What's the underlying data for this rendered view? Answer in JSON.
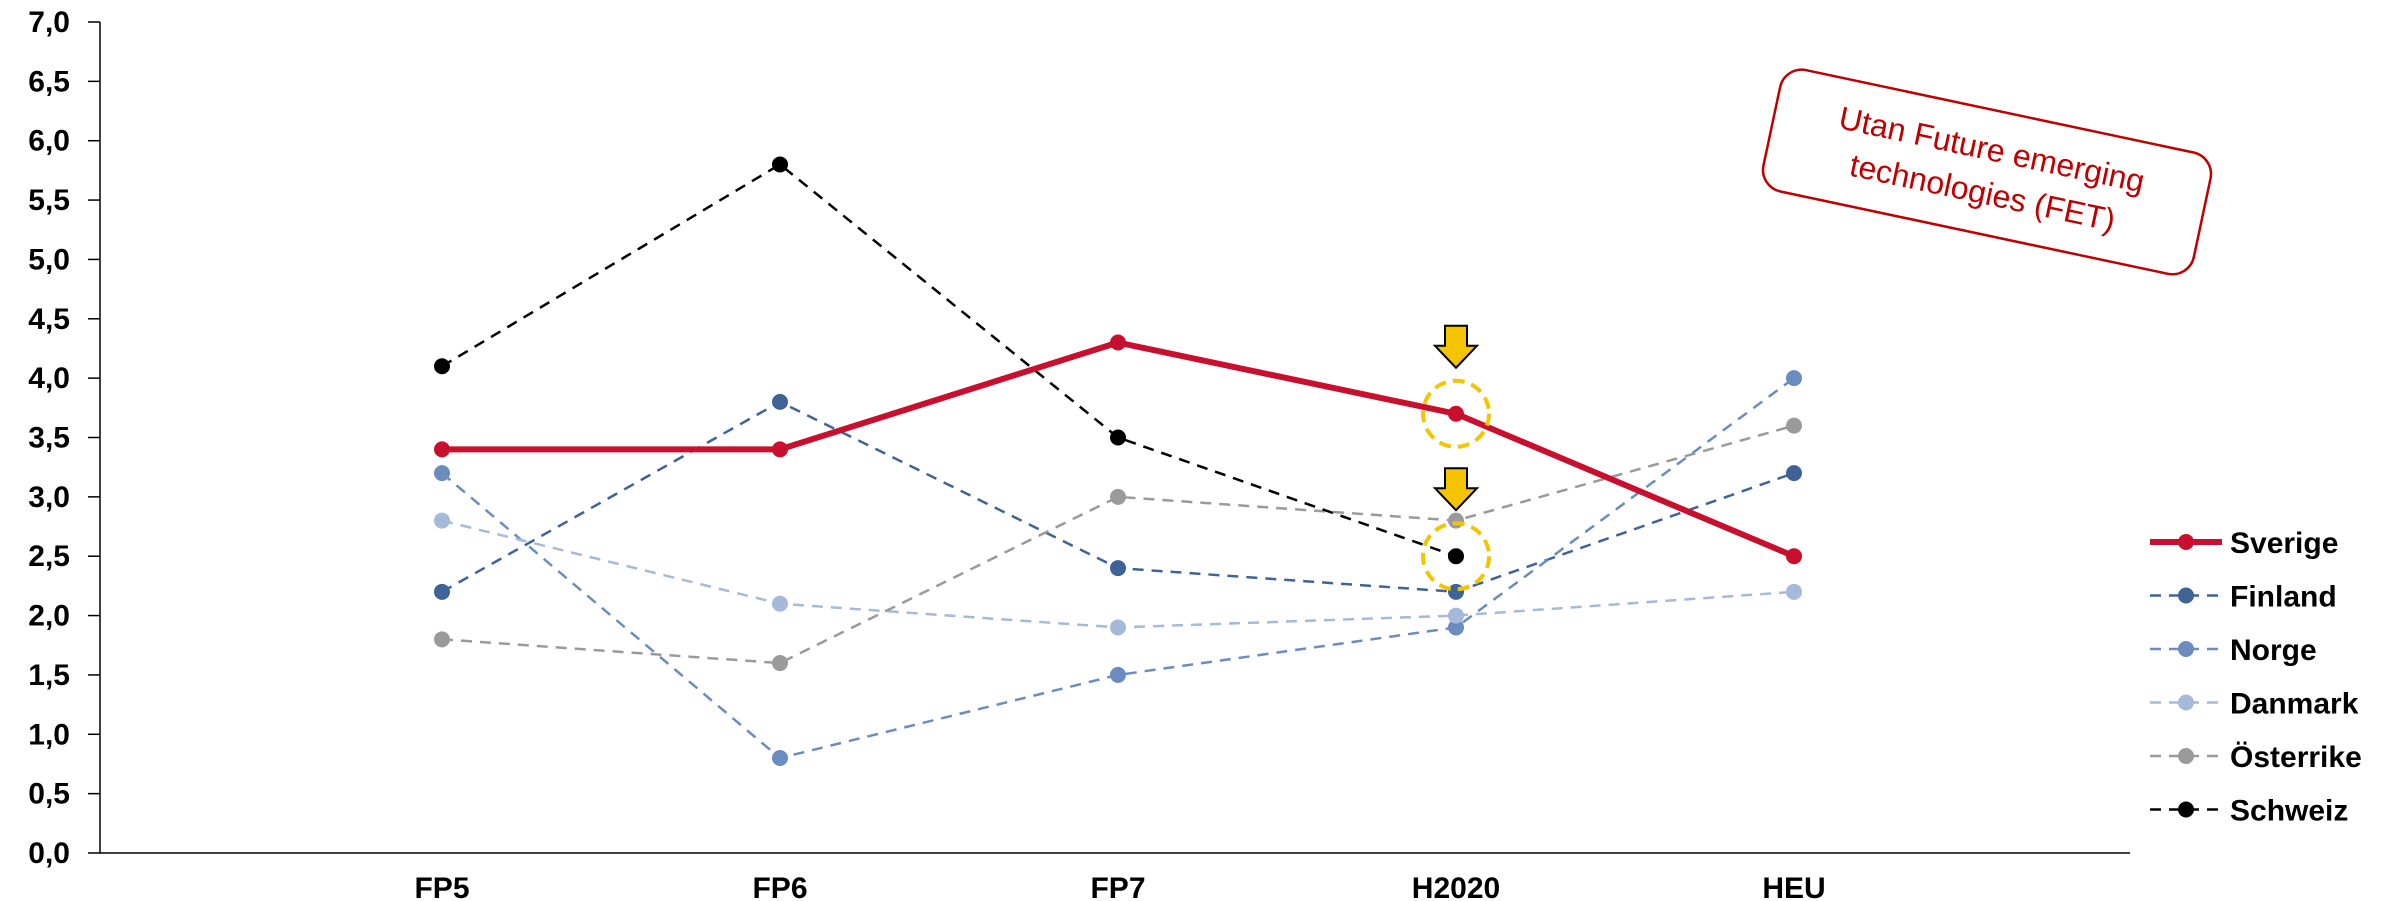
{
  "chart_data": {
    "type": "line",
    "categories": [
      "FP5",
      "FP6",
      "FP7",
      "H2020",
      "HEU"
    ],
    "ylim": [
      0,
      7
    ],
    "yticks": [
      "0,0",
      "0,5",
      "1,0",
      "1,5",
      "2,0",
      "2,5",
      "3,0",
      "3,5",
      "4,0",
      "4,5",
      "5,0",
      "5,5",
      "6,0",
      "6,5",
      "7,0"
    ],
    "grid": false,
    "legend_position": "right",
    "series": [
      {
        "name": "Sverige",
        "values": [
          3.4,
          3.4,
          4.3,
          3.7,
          2.5
        ],
        "color": "#c8102e",
        "style": "solid"
      },
      {
        "name": "Finland",
        "values": [
          2.2,
          3.8,
          2.4,
          2.2,
          3.2
        ],
        "color": "#3e6396",
        "style": "dashed"
      },
      {
        "name": "Norge",
        "values": [
          3.2,
          0.8,
          1.5,
          1.9,
          4.0
        ],
        "color": "#6b8cc0",
        "style": "dashed"
      },
      {
        "name": "Danmark",
        "values": [
          2.8,
          2.1,
          1.9,
          2.0,
          2.2
        ],
        "color": "#a5b9da",
        "style": "dashed"
      },
      {
        "name": "Österrike",
        "values": [
          1.8,
          1.6,
          3.0,
          2.8,
          3.6
        ],
        "color": "#9a9a9a",
        "style": "dashed"
      },
      {
        "name": "Schweiz",
        "values": [
          4.1,
          5.8,
          3.5,
          2.5,
          null
        ],
        "color": "#000000",
        "style": "dashed"
      }
    ],
    "annotations": {
      "note": [
        "Utan Future emerging",
        "technologies (FET)"
      ],
      "highlight_color": "#f5c400",
      "note_color": "#c00000",
      "highlights": [
        {
          "category": "H2020",
          "series": "Sverige"
        },
        {
          "category": "H2020",
          "series": "Schweiz"
        }
      ]
    }
  }
}
